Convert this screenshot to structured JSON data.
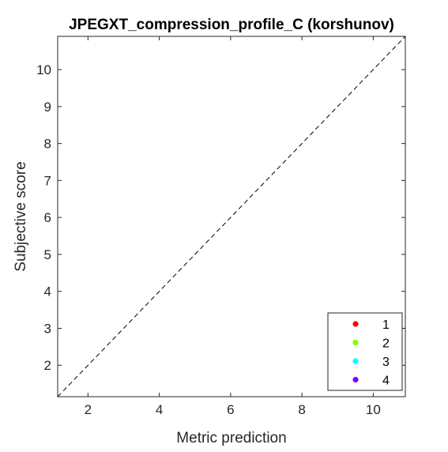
{
  "chart_data": {
    "type": "scatter",
    "title": "JPEGXT_compression_profile_C (korshunov)",
    "xlabel": "Metric prediction",
    "ylabel": "Subjective score",
    "xlim": [
      1.15,
      10.9
    ],
    "ylim": [
      1.15,
      10.9
    ],
    "xticks": [
      2,
      4,
      6,
      8,
      10
    ],
    "yticks": [
      2,
      3,
      4,
      5,
      6,
      7,
      8,
      9,
      10
    ],
    "grid": false,
    "reference_line": {
      "type": "identity",
      "style": "dashed",
      "color": "#000000"
    },
    "legend": {
      "position": "bottom-right",
      "entries": [
        {
          "label": "1",
          "color": "#ff0000"
        },
        {
          "label": "2",
          "color": "#80ff00"
        },
        {
          "label": "3",
          "color": "#00ffff"
        },
        {
          "label": "4",
          "color": "#8000ff"
        }
      ]
    },
    "series": [
      {
        "name": "1",
        "color": "#ff0000",
        "points": []
      },
      {
        "name": "2",
        "color": "#80ff00",
        "points": []
      },
      {
        "name": "3",
        "color": "#00ffff",
        "points": []
      },
      {
        "name": "4",
        "color": "#8000ff",
        "points": []
      }
    ]
  }
}
